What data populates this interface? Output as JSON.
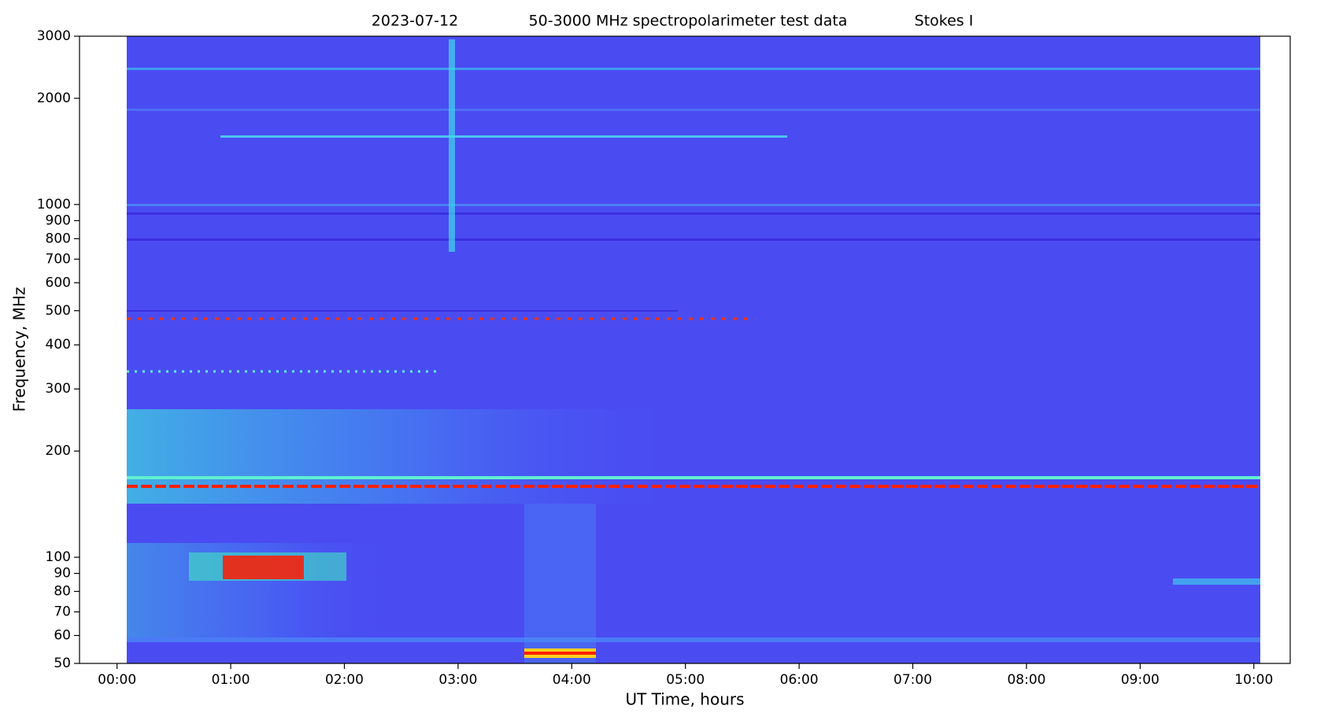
{
  "chart_data": {
    "type": "spectrogram",
    "title": [
      "2023-07-12",
      "50-3000 MHz spectropolarimeter test data",
      "Stokes I"
    ],
    "x_label": "UT Time, hours",
    "y_label": "Frequency, MHz",
    "xlim": [
      -0.33,
      10.32
    ],
    "xticks": [
      {
        "value": 0,
        "label": "00:00"
      },
      {
        "value": 1,
        "label": "01:00"
      },
      {
        "value": 2,
        "label": "02:00"
      },
      {
        "value": 3,
        "label": "03:00"
      },
      {
        "value": 4,
        "label": "04:00"
      },
      {
        "value": 5,
        "label": "05:00"
      },
      {
        "value": 6,
        "label": "06:00"
      },
      {
        "value": 7,
        "label": "07:00"
      },
      {
        "value": 8,
        "label": "08:00"
      },
      {
        "value": 9,
        "label": "09:00"
      },
      {
        "value": 10,
        "label": "10:00"
      }
    ],
    "ylim": [
      50,
      3000
    ],
    "yticks": [
      50,
      60,
      70,
      80,
      90,
      100,
      200,
      300,
      400,
      500,
      600,
      700,
      800,
      900,
      1000,
      2000,
      3000
    ],
    "log_y": true
  }
}
